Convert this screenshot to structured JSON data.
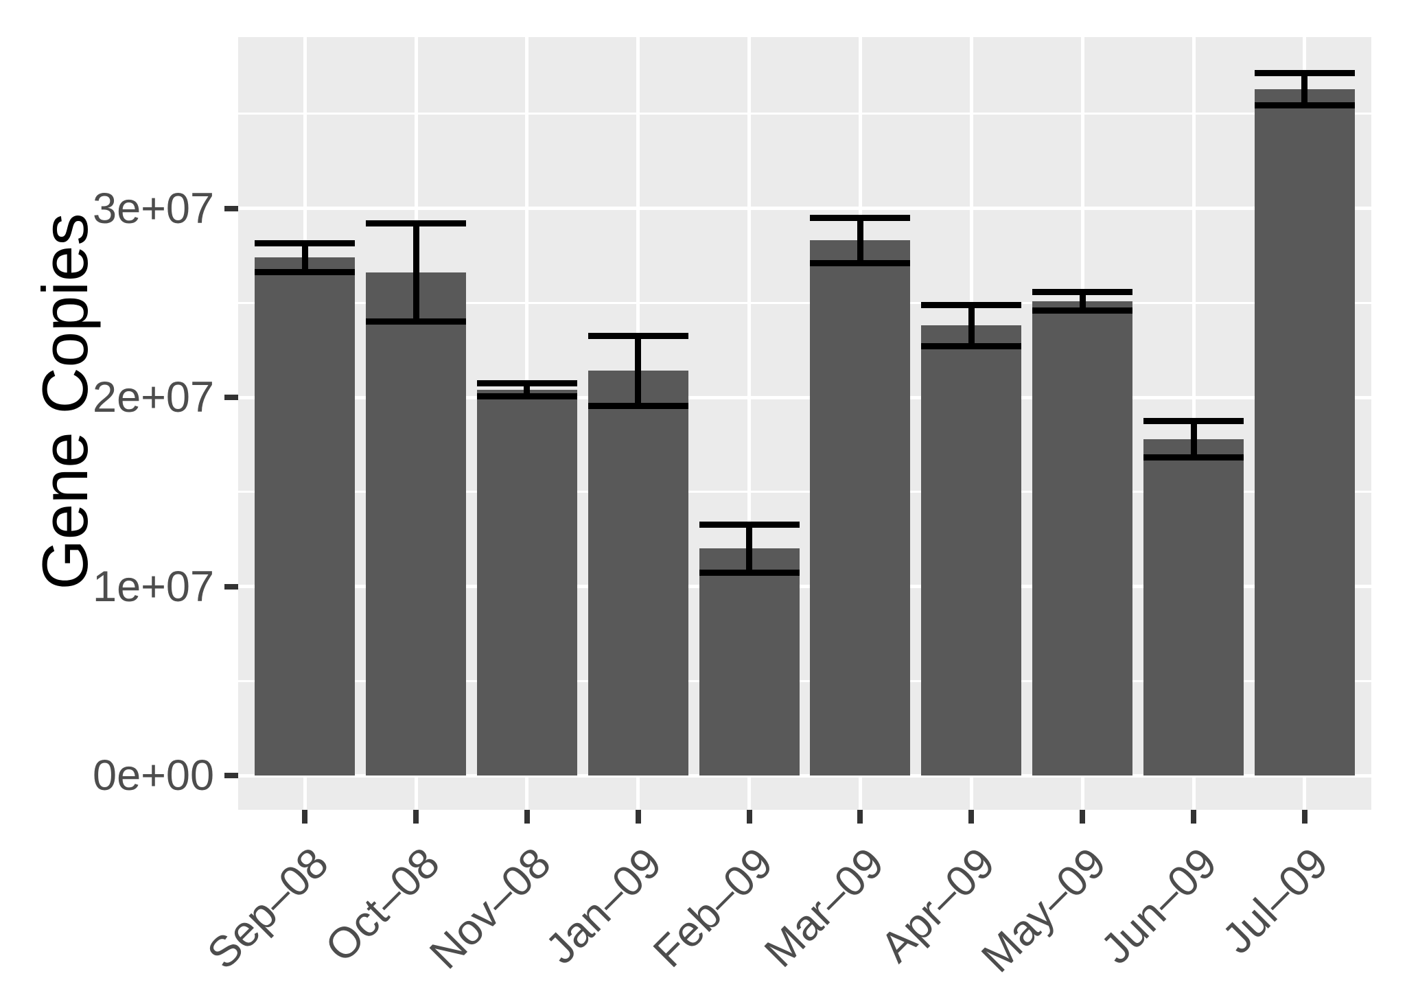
{
  "chart_data": {
    "type": "bar",
    "title": "",
    "xlabel": "",
    "ylabel": "Gene Copies",
    "categories": [
      "Sep–08",
      "Oct–08",
      "Nov–08",
      "Jan–09",
      "Feb–09",
      "Mar–09",
      "Apr–09",
      "May–09",
      "Jun–09",
      "Jul–09"
    ],
    "values": [
      27400000,
      26600000,
      20400000,
      21400000,
      12000000,
      28300000,
      23800000,
      25100000,
      17800000,
      36300000
    ],
    "errors": [
      760000,
      2600000,
      360000,
      1850000,
      1270000,
      1210000,
      1100000,
      490000,
      960000,
      850000
    ],
    "error_bar_style": "mean ± SE, caps as wide as bars",
    "ylim": [
      0,
      39000000
    ],
    "yticks": {
      "values": [
        0,
        10000000,
        20000000,
        30000000
      ],
      "labels": [
        "0e+00",
        "1e+07",
        "2e+07",
        "3e+07"
      ]
    },
    "yticks_minor": [
      5000000,
      15000000,
      25000000,
      35000000
    ],
    "bar_width_fraction": 0.9,
    "x_label_angle_deg": 45,
    "grid": "white major+minor horizontal lines, white vertical lines at category centers, shown on grey panel",
    "legend_position": "none",
    "style": "ggplot2 grey theme"
  },
  "colors": {
    "page_background": "#ffffff",
    "panel_background": "#EBEBEB",
    "grid_major": "#FFFFFF",
    "grid_minor": "#FFFFFF",
    "bar_fill": "#595959",
    "error_bar": "#000000",
    "tick_mark": "#333333",
    "tick_label": "#4D4D4D",
    "axis_title": "#000000"
  }
}
